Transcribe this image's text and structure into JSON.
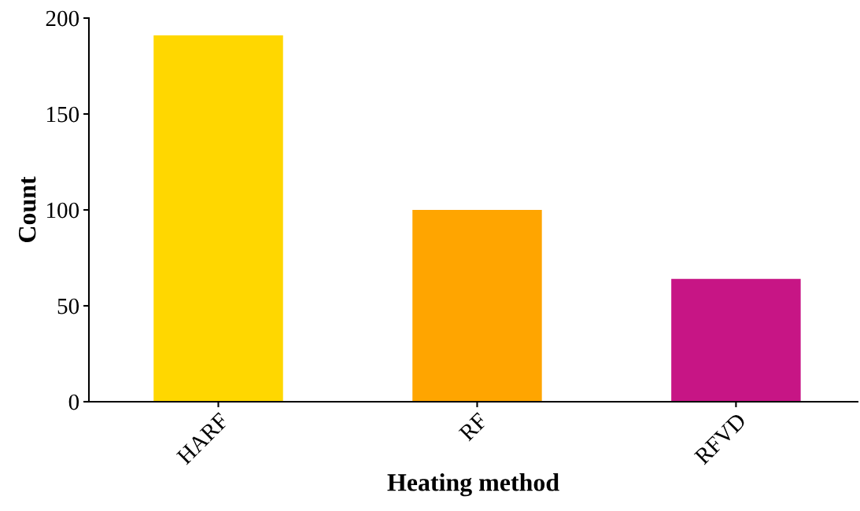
{
  "chart_data": {
    "type": "bar",
    "xlabel": "Heating method",
    "ylabel": "Count",
    "categories": [
      "HARF",
      "RF",
      "RFVD"
    ],
    "values": [
      191,
      100,
      64
    ],
    "colors": [
      "#ffd700",
      "#ffa500",
      "#c71585"
    ],
    "ylim": [
      0,
      200
    ],
    "yticks": [
      0,
      50,
      100,
      150,
      200
    ],
    "grid": false
  }
}
